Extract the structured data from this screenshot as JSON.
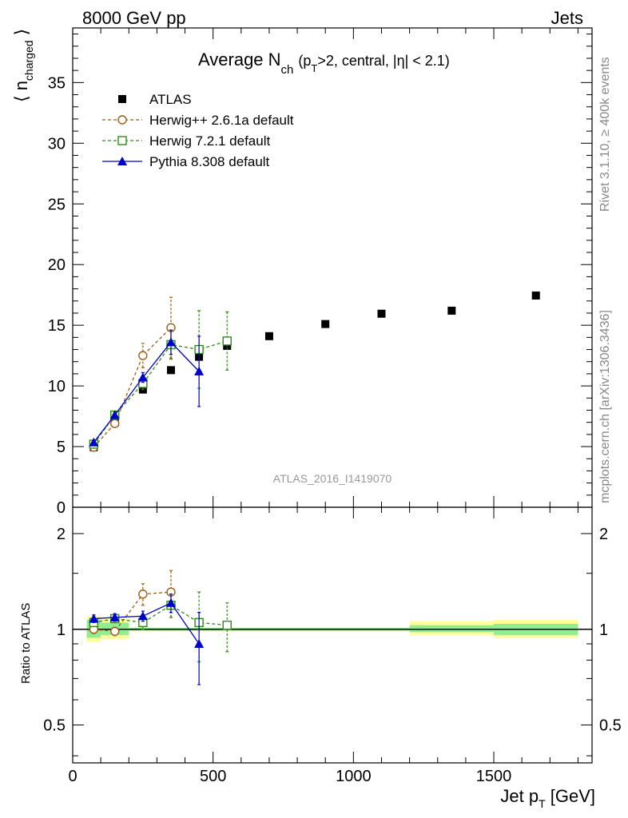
{
  "header": {
    "left": "8000 GeV pp",
    "right": "Jets"
  },
  "side_labels": {
    "rivet": "Rivet 3.1.10, ≥ 400k events",
    "mcplots": "mcplots.cern.ch [arXiv:1306.3436]"
  },
  "watermark": "ATLAS_2016_I1419070",
  "title": {
    "main": "Average N",
    "sub_ch": "ch",
    "paren_open": "(p",
    "sub_t": "T",
    "rest": ">2, central, |η| < 2.1)"
  },
  "axis": {
    "ylabel_top": {
      "main": "⟨ n",
      "sub": "charged",
      "close": " ⟩"
    },
    "ylabel_bottom": "Ratio to ATLAS",
    "xlabel": {
      "main": "Jet p",
      "sub": "T",
      "unit": " [GeV]"
    }
  },
  "colors": {
    "atlas": "#000000",
    "herwigpp": "#a05a14",
    "herwig7": "#2e8b14",
    "pythia": "#0000cc",
    "band_inner": "#90ee90",
    "band_outer": "#ffff99"
  },
  "chart_data": {
    "type": "scatter",
    "x_range": [
      0,
      1850
    ],
    "x_ticks": [
      0,
      500,
      1000,
      1500
    ],
    "main_panel": {
      "y_range": [
        0,
        39.5
      ],
      "y_ticks": [
        0,
        5,
        10,
        15,
        20,
        25,
        30,
        35
      ],
      "series": [
        {
          "name": "ATLAS",
          "style": "marker-filled-square",
          "color_key": "atlas",
          "x": [
            75,
            150,
            250,
            350,
            450,
            550,
            700,
            900,
            1100,
            1350,
            1650
          ],
          "y": [
            4.95,
            7.0,
            9.7,
            11.3,
            12.4,
            13.3,
            14.1,
            15.1,
            15.95,
            16.2,
            17.45
          ],
          "yerr": [
            0,
            0,
            0,
            0,
            0,
            0,
            0,
            0,
            0,
            0,
            0
          ]
        },
        {
          "name": "Herwig++ 2.6.1a default",
          "style": "dashed-open-circle",
          "color_key": "herwigpp",
          "x": [
            75,
            150,
            250,
            350
          ],
          "y": [
            4.95,
            6.9,
            12.5,
            14.8
          ],
          "yerr": [
            0.15,
            0.25,
            1.0,
            2.5
          ]
        },
        {
          "name": "Herwig 7.2.1 default",
          "style": "dashed-open-square",
          "color_key": "herwig7",
          "x": [
            75,
            150,
            250,
            350,
            450,
            550
          ],
          "y": [
            5.2,
            7.6,
            10.2,
            13.4,
            13.0,
            13.7
          ],
          "yerr": [
            0.15,
            0.25,
            0.5,
            1.2,
            3.2,
            2.4
          ]
        },
        {
          "name": "Pythia 8.308 default",
          "style": "solid-filled-triangle",
          "color_key": "pythia",
          "x": [
            75,
            150,
            250,
            350,
            450
          ],
          "y": [
            5.35,
            7.6,
            10.7,
            13.6,
            11.2
          ],
          "yerr": [
            0.15,
            0.25,
            0.4,
            1.0,
            2.9
          ]
        }
      ]
    },
    "ratio_panel": {
      "y_range": [
        0.38,
        2.42
      ],
      "y_scale": "log",
      "y_ticks": [
        0.5,
        1,
        2
      ],
      "bands": [
        {
          "x0": 50,
          "x1": 100,
          "inner": [
            0.94,
            1.07
          ],
          "outer": [
            0.91,
            1.1
          ]
        },
        {
          "x0": 100,
          "x1": 200,
          "inner": [
            0.96,
            1.05
          ],
          "outer": [
            0.93,
            1.08
          ]
        },
        {
          "x0": 200,
          "x1": 1200,
          "inner": [
            0.99,
            1.01
          ],
          "outer": [
            0.985,
            1.015
          ]
        },
        {
          "x0": 1200,
          "x1": 1500,
          "inner": [
            0.98,
            1.03
          ],
          "outer": [
            0.96,
            1.06
          ]
        },
        {
          "x0": 1500,
          "x1": 1800,
          "inner": [
            0.96,
            1.04
          ],
          "outer": [
            0.94,
            1.07
          ]
        }
      ],
      "series": [
        {
          "name": "Herwig++ 2.6.1a default",
          "color_key": "herwigpp",
          "style": "dashed-open-circle",
          "x": [
            75,
            150,
            250,
            350
          ],
          "y": [
            1.0,
            0.985,
            1.29,
            1.31
          ],
          "yerr": [
            0.03,
            0.03,
            0.1,
            0.22
          ]
        },
        {
          "name": "Herwig 7.2.1 default",
          "color_key": "herwig7",
          "style": "dashed-open-square",
          "x": [
            75,
            150,
            250,
            350,
            450,
            550
          ],
          "y": [
            1.05,
            1.08,
            1.05,
            1.19,
            1.05,
            1.03
          ],
          "yerr": [
            0.03,
            0.03,
            0.05,
            0.1,
            0.26,
            0.18
          ]
        },
        {
          "name": "Pythia 8.308 default",
          "color_key": "pythia",
          "style": "solid-filled-triangle",
          "x": [
            75,
            150,
            250,
            350,
            450
          ],
          "y": [
            1.08,
            1.09,
            1.1,
            1.21,
            0.9
          ],
          "yerr": [
            0.03,
            0.03,
            0.04,
            0.08,
            0.23
          ]
        }
      ]
    }
  }
}
